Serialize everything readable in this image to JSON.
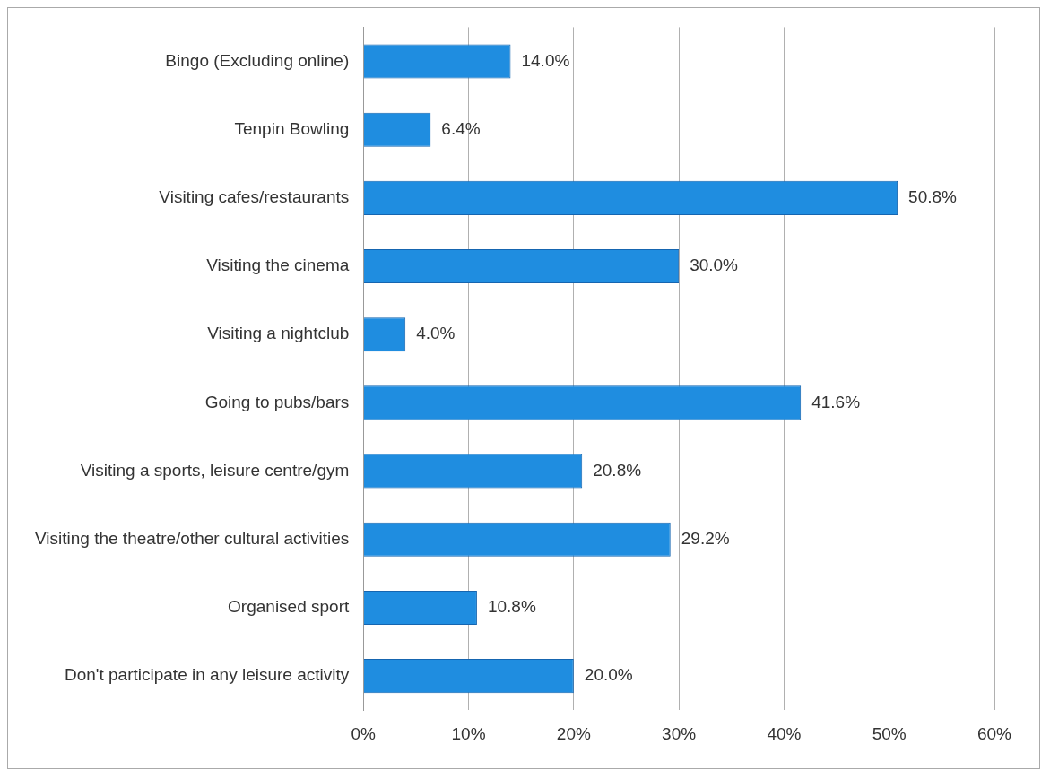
{
  "chart_data": {
    "type": "bar",
    "orientation": "horizontal",
    "categories": [
      "Bingo (Excluding online)",
      "Tenpin Bowling",
      "Visiting cafes/restaurants",
      "Visiting the cinema",
      "Visiting a nightclub",
      "Going to pubs/bars",
      "Visiting a sports, leisure centre/gym",
      "Visiting the theatre/other cultural activities",
      "Organised sport",
      "Don't participate in any leisure activity"
    ],
    "values": [
      14.0,
      6.4,
      50.8,
      30.0,
      4.0,
      41.6,
      20.8,
      29.2,
      10.8,
      20.0
    ],
    "value_labels": [
      "14.0%",
      "6.4%",
      "50.8%",
      "30.0%",
      "4.0%",
      "41.6%",
      "20.8%",
      "29.2%",
      "10.8%",
      "20.0%"
    ],
    "color": "#1f8de0",
    "xlim": [
      0,
      60
    ],
    "xticks": [
      {
        "value": 0,
        "label": "0%"
      },
      {
        "value": 10,
        "label": "10%"
      },
      {
        "value": 20,
        "label": "20%"
      },
      {
        "value": 30,
        "label": "30%"
      },
      {
        "value": 40,
        "label": "40%"
      },
      {
        "value": 50,
        "label": "50%"
      },
      {
        "value": 60,
        "label": "60%"
      }
    ],
    "grid": "x"
  }
}
